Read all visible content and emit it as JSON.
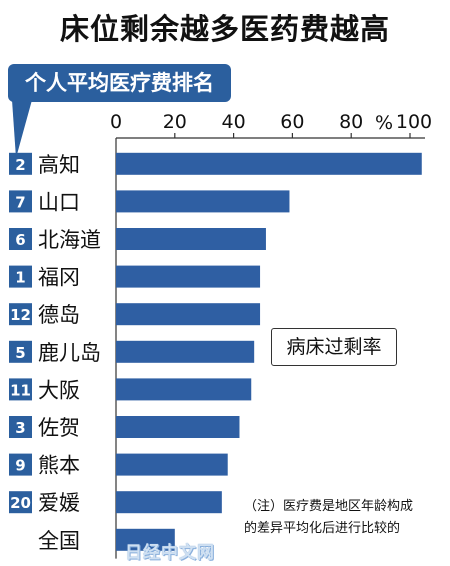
{
  "title": "床位剩余越多医药费越高",
  "legend_badge": "个人平均医疗费排名",
  "unit_label": "%",
  "annotation": "病床过剩率",
  "footnote_line1": "（注）医疗费是地区年龄构成",
  "footnote_line2": "的差异平均化后进行比较的",
  "watermark": "日经中文网",
  "colors": {
    "bar": "#2f5fa3",
    "rank_badge": "#2b5f9e",
    "gridline": "#333333"
  },
  "chart_data": {
    "type": "bar",
    "orientation": "horizontal",
    "title": "床位剩余越多医药费越高",
    "xlabel": "",
    "ylabel": "",
    "unit": "%",
    "xlim": [
      0,
      105
    ],
    "ticks": [
      "0",
      "20",
      "40",
      "60",
      "80",
      "100"
    ],
    "tick_values": [
      0,
      20,
      40,
      60,
      80,
      100
    ],
    "categories": [
      "高知",
      "山口",
      "北海道",
      "福冈",
      "德岛",
      "鹿儿岛",
      "大阪",
      "佐贺",
      "熊本",
      "爱媛",
      "全国"
    ],
    "ranks": [
      "2",
      "7",
      "6",
      "1",
      "12",
      "5",
      "11",
      "3",
      "9",
      "20",
      ""
    ],
    "values": [
      104,
      59,
      51,
      49,
      49,
      47,
      46,
      42,
      38,
      36,
      20
    ]
  }
}
